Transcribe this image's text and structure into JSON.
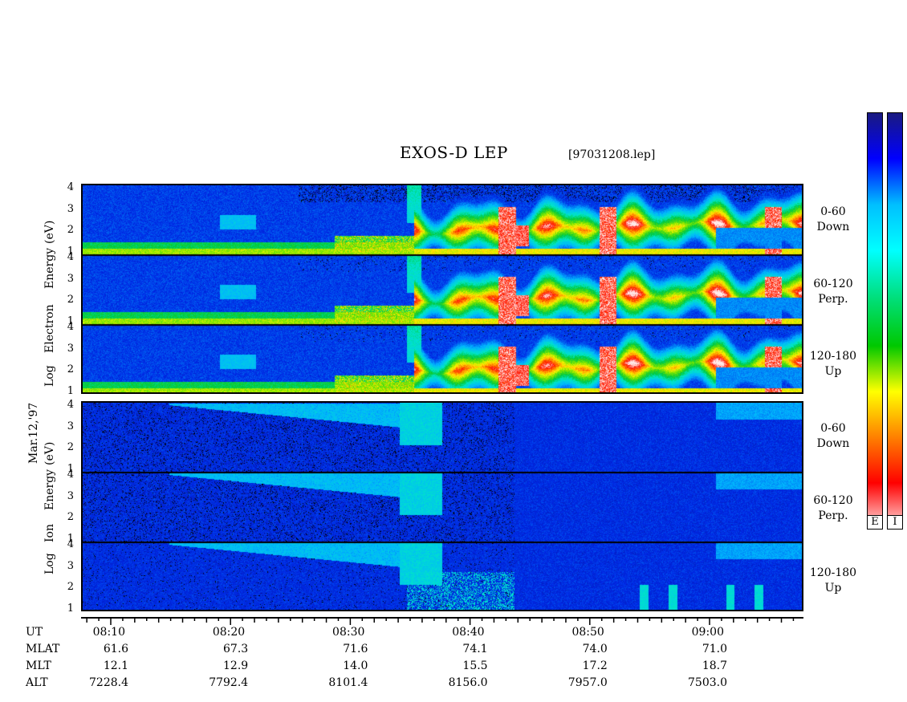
{
  "title": "EXOS-D LEP",
  "file_label": "[97031208.lep]",
  "date_label": "Mar.12,'97",
  "electron_axis_label": [
    "Log",
    "Electron",
    "Energy",
    "(eV)"
  ],
  "ion_axis_label": [
    "Log",
    "Ion",
    "Energy",
    "(eV)"
  ],
  "y_ticks": [
    "1",
    "2",
    "3",
    "4"
  ],
  "pitch_angle_labels": [
    {
      "range": "0-60",
      "dir": "Down"
    },
    {
      "range": "60-120",
      "dir": "Perp."
    },
    {
      "range": "120-180",
      "dir": "Up"
    }
  ],
  "colorbar_labels": [
    "E",
    "I"
  ],
  "colorbar_colors": [
    "#1a1a80",
    "#0000ff",
    "#00bfff",
    "#00ffff",
    "#00e080",
    "#00c800",
    "#ffff00",
    "#ff8000",
    "#ff0000",
    "#ffe0e0"
  ],
  "ephemeris": {
    "rows": [
      "UT",
      "MLAT",
      "MLT",
      "ALT"
    ],
    "columns": [
      {
        "ut": "08:10",
        "mlat": "61.6",
        "mlt": "12.1",
        "alt": "7228.4"
      },
      {
        "ut": "08:20",
        "mlat": "67.3",
        "mlt": "12.9",
        "alt": "7792.4"
      },
      {
        "ut": "08:30",
        "mlat": "71.6",
        "mlt": "14.0",
        "alt": "8101.4"
      },
      {
        "ut": "08:40",
        "mlat": "74.1",
        "mlt": "15.5",
        "alt": "8156.0"
      },
      {
        "ut": "08:50",
        "mlat": "74.0",
        "mlt": "17.2",
        "alt": "7957.0"
      },
      {
        "ut": "09:00",
        "mlat": "71.0",
        "mlt": "18.7",
        "alt": "7503.0"
      }
    ]
  },
  "chart_data": {
    "type": "heatmap",
    "title": "EXOS-D LEP",
    "x_axis": "UT",
    "x_ticks": [
      "08:10",
      "08:20",
      "08:30",
      "08:40",
      "08:50",
      "09:00"
    ],
    "ylim": [
      1,
      4
    ],
    "panels": [
      {
        "species": "Electron",
        "pitch": "0-60",
        "dir": "Down"
      },
      {
        "species": "Electron",
        "pitch": "60-120",
        "dir": "Perp."
      },
      {
        "species": "Electron",
        "pitch": "120-180",
        "dir": "Up"
      },
      {
        "species": "Ion",
        "pitch": "0-60",
        "dir": "Down"
      },
      {
        "species": "Ion",
        "pitch": "60-120",
        "dir": "Perp."
      },
      {
        "species": "Ion",
        "pitch": "120-180",
        "dir": "Up"
      }
    ]
  }
}
